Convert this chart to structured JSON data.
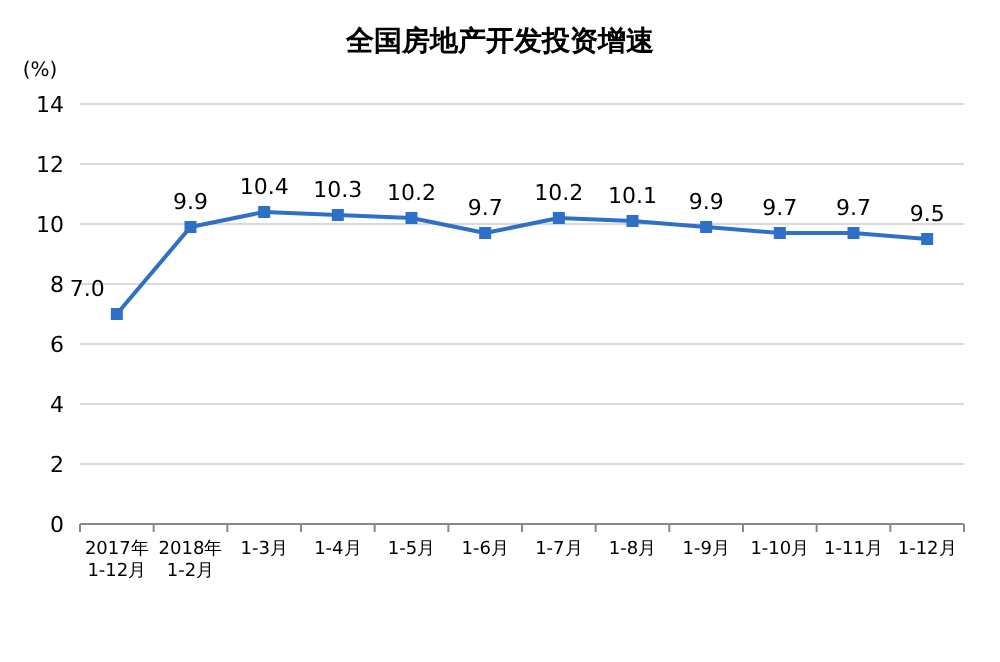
{
  "chart_data": {
    "type": "line",
    "title": "全国房地产开发投资增速",
    "ylabel": "(%)",
    "categories": [
      "2017年\n1-12月",
      "2018年\n1-2月",
      "1-3月",
      "1-4月",
      "1-5月",
      "1-6月",
      "1-7月",
      "1-8月",
      "1-9月",
      "1-10月",
      "1-11月",
      "1-12月"
    ],
    "series": [
      {
        "color": "#2e6fc7",
        "values": [
          7.0,
          9.9,
          10.4,
          10.3,
          10.2,
          9.7,
          10.2,
          10.1,
          9.9,
          9.7,
          9.7,
          9.5
        ],
        "value_labels": [
          "7.0",
          "9.9",
          "10.4",
          "10.3",
          "10.2",
          "9.7",
          "10.2",
          "10.1",
          "9.9",
          "9.7",
          "9.7",
          "9.5"
        ]
      }
    ],
    "ylim": [
      0,
      14
    ],
    "yticks": [
      0,
      2,
      4,
      6,
      8,
      10,
      12,
      14
    ],
    "grid": "y",
    "marker": "square",
    "line_style": "solid"
  }
}
